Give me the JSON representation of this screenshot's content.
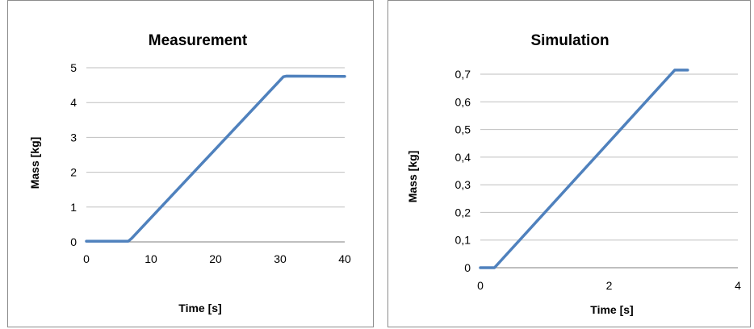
{
  "chart_data": [
    {
      "type": "line",
      "title": "Measurement",
      "xlabel": "Time [s]",
      "ylabel": "Mass [kg]",
      "xlim": [
        0,
        40
      ],
      "ylim": [
        0,
        5
      ],
      "xticks": [
        "0",
        "10",
        "20",
        "30",
        "40"
      ],
      "yticks": [
        "0",
        "1",
        "2",
        "3",
        "4",
        "5"
      ],
      "grid": true,
      "series": [
        {
          "color": "#4f81bd",
          "x": [
            0,
            6.5,
            7,
            30.5,
            31,
            40
          ],
          "y": [
            0.02,
            0.02,
            0.1,
            4.74,
            4.76,
            4.75
          ]
        }
      ]
    },
    {
      "type": "line",
      "title": "Simulation",
      "xlabel": "Time [s]",
      "ylabel": "Mass [kg]",
      "xlim": [
        0,
        4
      ],
      "ylim": [
        0,
        0.7
      ],
      "xticks": [
        "0",
        "2",
        "4"
      ],
      "yticks": [
        "0",
        "0,1",
        "0,2",
        "0,3",
        "0,4",
        "0,5",
        "0,6",
        "0,7"
      ],
      "grid": true,
      "series": [
        {
          "color": "#4f81bd",
          "x": [
            0,
            0.22,
            3.02,
            3.22
          ],
          "y": [
            0,
            0,
            0.715,
            0.715
          ]
        }
      ]
    }
  ]
}
